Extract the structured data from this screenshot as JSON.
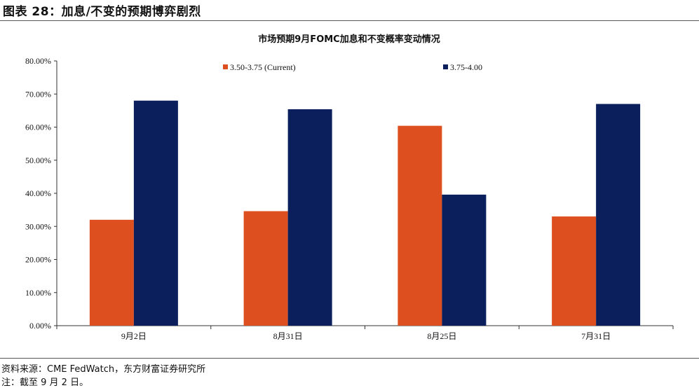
{
  "figure": {
    "title": "图表 28：加息/不变的预期博弈剧烈",
    "source": "资料来源：CME FedWatch，东方财富证券研究所",
    "note": "注：截至 9 月 2 日。"
  },
  "chart_data": {
    "type": "bar",
    "title": "市场预期9月FOMC加息和不变概率变动情况",
    "categories": [
      "9月2日",
      "8月31日",
      "8月25日",
      "7月31日"
    ],
    "series": [
      {
        "name": "3.50-3.75 (Current)",
        "color": "#DD4F1E",
        "values": [
          32.0,
          34.6,
          60.4,
          33.0
        ]
      },
      {
        "name": "3.75-4.00",
        "color": "#0A1F5C",
        "values": [
          68.0,
          65.4,
          39.6,
          67.0
        ]
      }
    ],
    "ylim": [
      0,
      80
    ],
    "yticks": [
      "0.00%",
      "10.00%",
      "20.00%",
      "30.00%",
      "40.00%",
      "50.00%",
      "60.00%",
      "70.00%",
      "80.00%"
    ],
    "xlabel": "",
    "ylabel": "",
    "grid": false,
    "legend_position": "top"
  }
}
